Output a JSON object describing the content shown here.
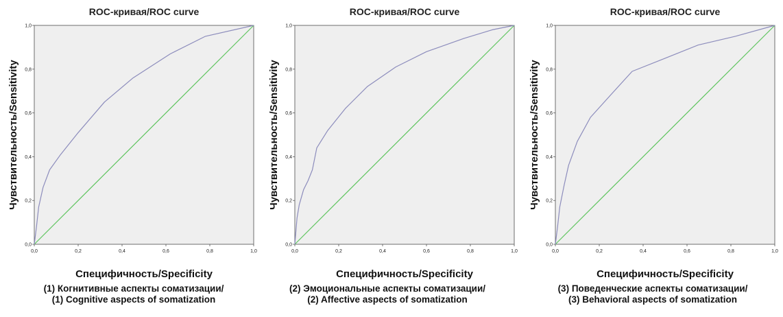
{
  "chart_data": [
    {
      "type": "line",
      "title": "ROC-кривая/ROC curve",
      "xlabel": "Специфичность/Specificity",
      "ylabel": "Чувствительность/Sensitivity",
      "xlim": [
        0,
        1
      ],
      "ylim": [
        0,
        1
      ],
      "ticks": [
        "0,0",
        "0,2",
        "0,4",
        "0,6",
        "0,8",
        "1,0"
      ],
      "grid": false,
      "caption": [
        "(1) Когнитивные аспекты соматизации/",
        "(1) Cognitive aspects of somatization"
      ],
      "series": [
        {
          "color": "#8c8cbc",
          "x": [
            0,
            0.01,
            0.02,
            0.04,
            0.07,
            0.12,
            0.2,
            0.32,
            0.45,
            0.62,
            0.78,
            1.0
          ],
          "y": [
            0,
            0.08,
            0.17,
            0.26,
            0.34,
            0.41,
            0.51,
            0.65,
            0.76,
            0.87,
            0.95,
            1.0
          ]
        },
        {
          "color": "#5ec45e",
          "x": [
            0,
            1
          ],
          "y": [
            0,
            1
          ]
        }
      ]
    },
    {
      "type": "line",
      "title": "ROC-кривая/ROC curve",
      "xlabel": "Специфичность/Specificity",
      "ylabel": "Чувствительность/Sensitivity",
      "xlim": [
        0,
        1
      ],
      "ylim": [
        0,
        1
      ],
      "ticks": [
        "0,0",
        "0,2",
        "0,4",
        "0,6",
        "0,8",
        "1,0"
      ],
      "grid": false,
      "caption": [
        "(2) Эмоциональные аспекты соматизации/",
        "(2) Affective  aspects of somatization"
      ],
      "series": [
        {
          "color": "#8c8cbc",
          "x": [
            0,
            0.01,
            0.02,
            0.04,
            0.06,
            0.08,
            0.1,
            0.15,
            0.23,
            0.33,
            0.46,
            0.6,
            0.77,
            0.9,
            1.0
          ],
          "y": [
            0,
            0.12,
            0.18,
            0.25,
            0.29,
            0.34,
            0.44,
            0.52,
            0.62,
            0.72,
            0.81,
            0.88,
            0.94,
            0.98,
            1.0
          ]
        },
        {
          "color": "#5ec45e",
          "x": [
            0,
            1
          ],
          "y": [
            0,
            1
          ]
        }
      ]
    },
    {
      "type": "line",
      "title": "ROC-кривая/ROC curve",
      "xlabel": "Специфичность/Specificity",
      "ylabel": "Чувствительность/Sensitivity",
      "xlim": [
        0,
        1
      ],
      "ylim": [
        0,
        1
      ],
      "ticks": [
        "0,0",
        "0,2",
        "0,4",
        "0,6",
        "0,8",
        "1,0"
      ],
      "grid": false,
      "caption": [
        "(3) Поведенческие аспекты соматизации/",
        "(3) Behavioral aspects of somatization"
      ],
      "series": [
        {
          "color": "#8c8cbc",
          "x": [
            0,
            0.01,
            0.02,
            0.04,
            0.06,
            0.1,
            0.16,
            0.25,
            0.35,
            0.5,
            0.65,
            0.82,
            1.0
          ],
          "y": [
            0,
            0.08,
            0.17,
            0.27,
            0.36,
            0.47,
            0.58,
            0.68,
            0.79,
            0.85,
            0.91,
            0.95,
            1.0
          ]
        },
        {
          "color": "#5ec45e",
          "x": [
            0,
            1
          ],
          "y": [
            0,
            1
          ]
        }
      ]
    }
  ]
}
